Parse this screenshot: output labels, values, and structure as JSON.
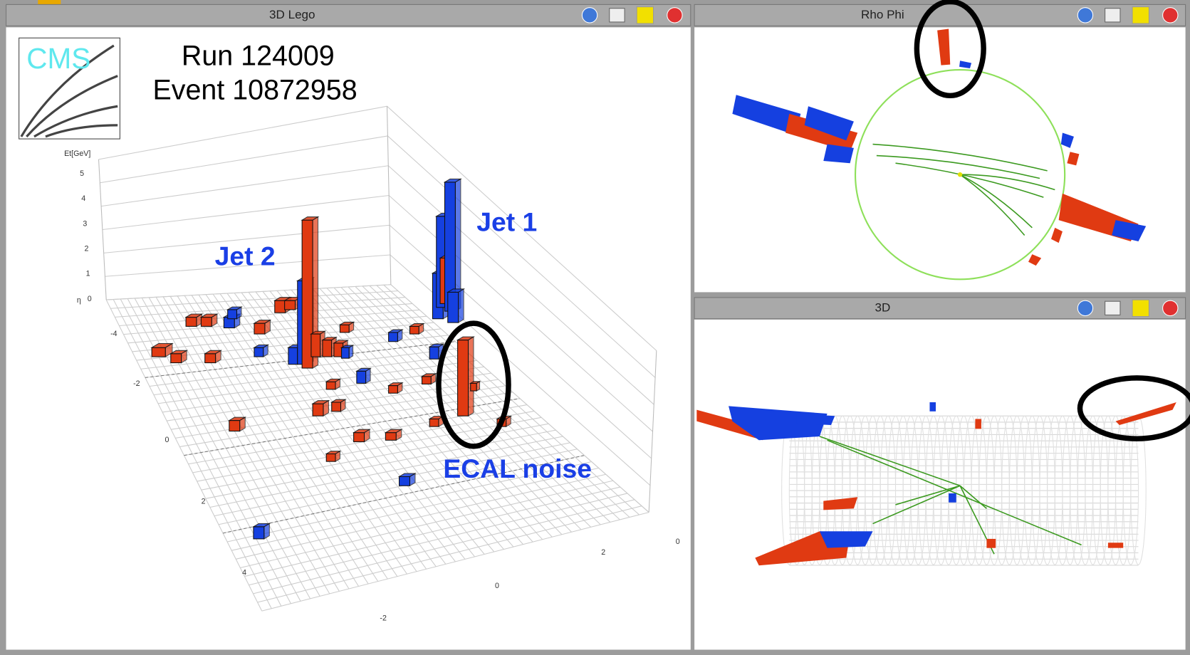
{
  "panels": [
    {
      "title": "3D Lego"
    },
    {
      "title": "Rho Phi"
    },
    {
      "title": "3D"
    }
  ],
  "lego": {
    "logo": "CMS",
    "run": "Run 124009",
    "event": "Event 10872958",
    "axis_label": "Et[GeV]",
    "et_ticks": [
      "0",
      "1",
      "2",
      "3",
      "4",
      "5"
    ],
    "eta_label": "η",
    "eta_ticks": [
      "-4",
      "-2",
      "0",
      "2",
      "4"
    ],
    "phi_ticks": [
      "0",
      "2",
      "0",
      "-2"
    ]
  },
  "annotations": [
    "Jet 1",
    "Jet 2",
    "ECAL noise"
  ]
}
